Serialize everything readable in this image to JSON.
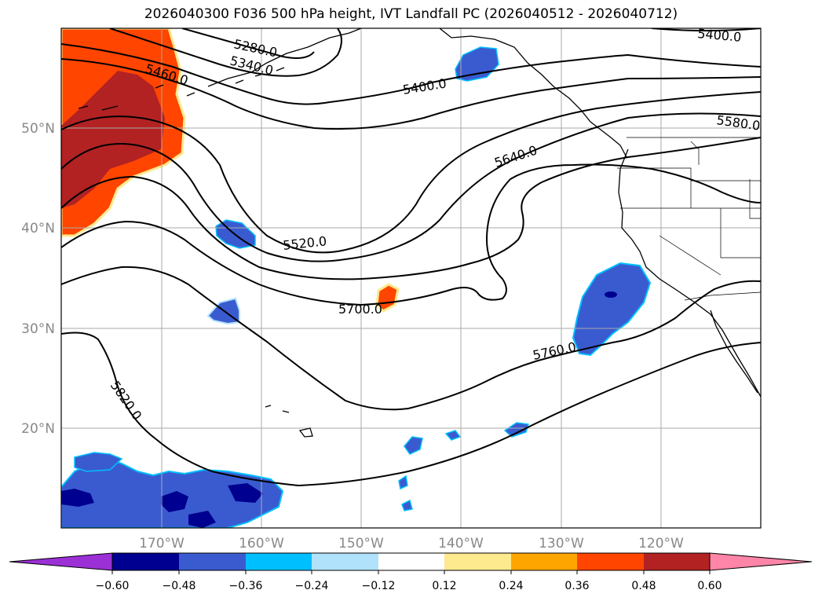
{
  "title": "2026040300 F036 500 hPa height, IVT Landfall PC (2026040512 - 2026040712)",
  "lat_ticks": [
    "50°N",
    "40°N",
    "30°N",
    "20°N"
  ],
  "lon_ticks": [
    "170°W",
    "160°W",
    "150°W",
    "140°W",
    "130°W",
    "120°W"
  ],
  "contour_labels": [
    "5280.0",
    "5340.0",
    "5400.0",
    "5400.0",
    "5460.0",
    "5520.0",
    "5580.0",
    "5640.0",
    "5700.0",
    "5760.0",
    "5820.0"
  ],
  "colorbar": {
    "ticks": [
      "−0.60",
      "−0.48",
      "−0.36",
      "−0.24",
      "−0.12",
      "0.12",
      "0.24",
      "0.36",
      "0.48",
      "0.60"
    ],
    "colors": [
      "#9b30d6",
      "#000090",
      "#3a5bd0",
      "#00bfff",
      "#b0e2fc",
      "#ffffff",
      "#fde98e",
      "#ffa500",
      "#ff4500",
      "#b22222",
      "#ff85a8"
    ]
  },
  "colors": {
    "contour": "#000000",
    "grid": "#aaaaaa",
    "tick_label": "#888888"
  }
}
